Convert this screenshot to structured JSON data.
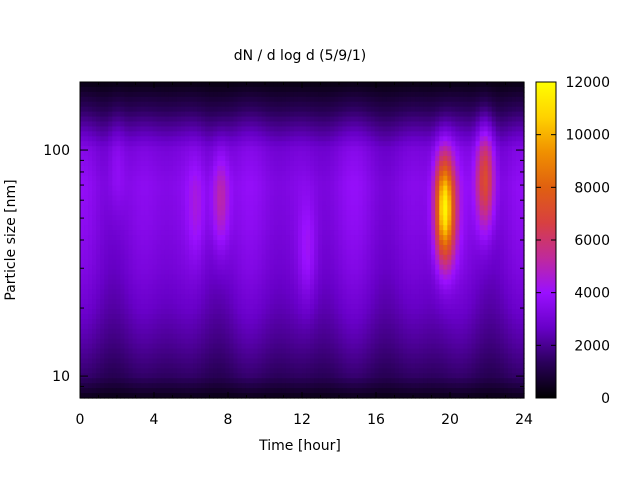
{
  "chart_data": {
    "type": "heatmap",
    "title": "dN / d log d (5/9/1)",
    "xlabel": "Time [hour]",
    "ylabel": "Particle size [nm]",
    "x_ticks": [
      "0",
      "4",
      "8",
      "12",
      "16",
      "20",
      "24"
    ],
    "x_tick_values": [
      0,
      4,
      8,
      12,
      16,
      20,
      24
    ],
    "xlim": [
      0,
      24
    ],
    "y_scale": "log",
    "y_ticks": [
      "10",
      "100"
    ],
    "y_tick_values": [
      10,
      100
    ],
    "ylim": [
      8,
      200
    ],
    "colorbar": {
      "ticks": [
        "0",
        "2000",
        "4000",
        "6000",
        "8000",
        "10000",
        "12000"
      ],
      "tick_values": [
        0,
        2000,
        4000,
        6000,
        8000,
        10000,
        12000
      ],
      "range": [
        0,
        12000
      ],
      "colormap": [
        "#000000",
        "#2a005a",
        "#6800c8",
        "#9a10ff",
        "#c02a9a",
        "#d84040",
        "#e06010",
        "#f09000",
        "#ffd200",
        "#ffff00"
      ]
    },
    "background_profile": {
      "size_nm": [
        8,
        10,
        14,
        20,
        30,
        45,
        70,
        100,
        150,
        200
      ],
      "value": [
        400,
        1600,
        2300,
        2900,
        3400,
        3700,
        3900,
        3500,
        1500,
        300
      ]
    },
    "hot_spots": [
      {
        "time_hour": 7.6,
        "size_nm": 60,
        "peak": 6000
      },
      {
        "time_hour": 6.3,
        "size_nm": 55,
        "peak": 4800
      },
      {
        "time_hour": 12.3,
        "size_nm": 35,
        "peak": 4600
      },
      {
        "time_hour": 19.7,
        "size_nm": 55,
        "peak": 11800
      },
      {
        "time_hour": 20.2,
        "size_nm": 50,
        "peak": 4500
      },
      {
        "time_hour": 21.9,
        "size_nm": 75,
        "peak": 8000
      },
      {
        "time_hour": 2.0,
        "size_nm": 90,
        "peak": 4500
      }
    ]
  }
}
